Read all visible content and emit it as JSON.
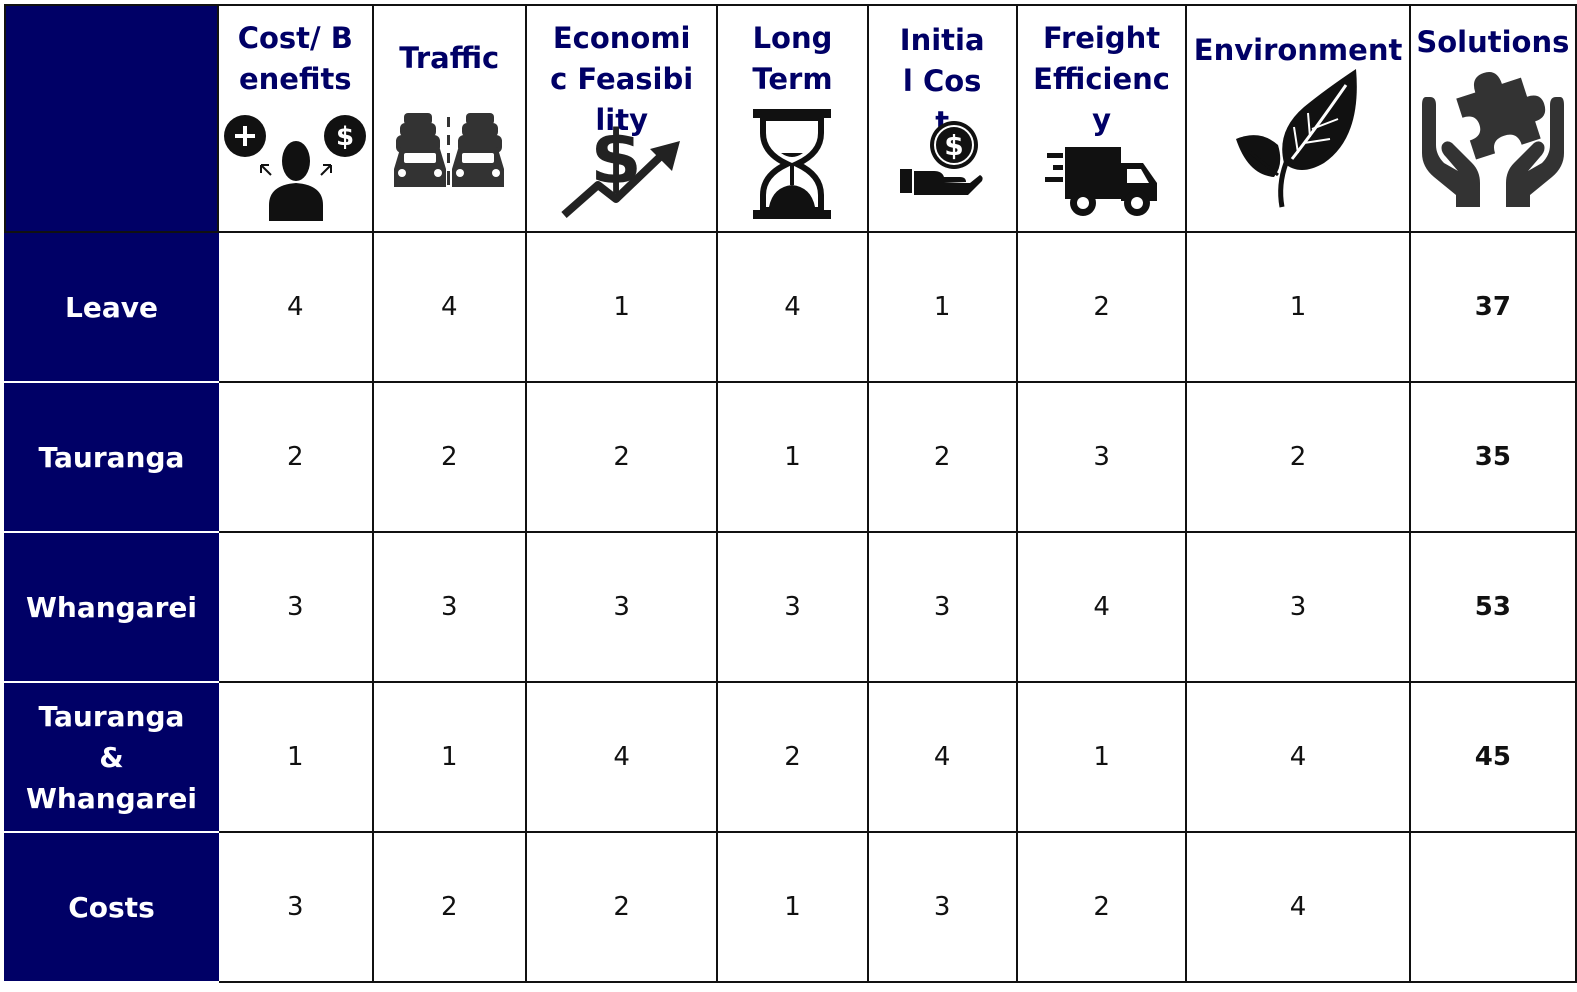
{
  "columns": [
    {
      "key": "cost_benefits",
      "label": "Cost/ Benefits",
      "icon": "cost-benefits-icon"
    },
    {
      "key": "traffic",
      "label": "Traffic",
      "icon": "traffic-icon"
    },
    {
      "key": "economic_feasibility",
      "label": "Economic Feasibility",
      "icon": "dollar-growth-icon"
    },
    {
      "key": "long_term",
      "label": "Long Term",
      "icon": "hourglass-icon"
    },
    {
      "key": "initial_cost",
      "label": "Initial Cost",
      "icon": "hand-coin-icon"
    },
    {
      "key": "freight_efficiency",
      "label": "Freight Efficiency",
      "icon": "delivery-truck-icon"
    },
    {
      "key": "environment",
      "label": "Environment",
      "icon": "leaf-icon"
    },
    {
      "key": "solutions",
      "label": "Solutions",
      "icon": "hands-puzzle-icon"
    }
  ],
  "rows": [
    {
      "label": "Leave",
      "scores": [
        "4",
        "4",
        "1",
        "4",
        "1",
        "2",
        "1"
      ],
      "total": "37"
    },
    {
      "label": "Tauranga",
      "scores": [
        "2",
        "2",
        "2",
        "1",
        "2",
        "3",
        "2"
      ],
      "total": "35"
    },
    {
      "label": "Whangarei",
      "scores": [
        "3",
        "3",
        "3",
        "3",
        "3",
        "4",
        "3"
      ],
      "total": "53"
    },
    {
      "label": "Tauranga & Whangarei",
      "scores": [
        "1",
        "1",
        "4",
        "2",
        "4",
        "1",
        "4"
      ],
      "total": "45"
    },
    {
      "label": "Costs",
      "scores": [
        "3",
        "2",
        "2",
        "1",
        "3",
        "2",
        "4"
      ],
      "total": ""
    }
  ],
  "colors": {
    "header_bg": "#000066",
    "header_text": "#000066",
    "row_label_text": "#ffffff",
    "icon": "#1c1c1c"
  }
}
